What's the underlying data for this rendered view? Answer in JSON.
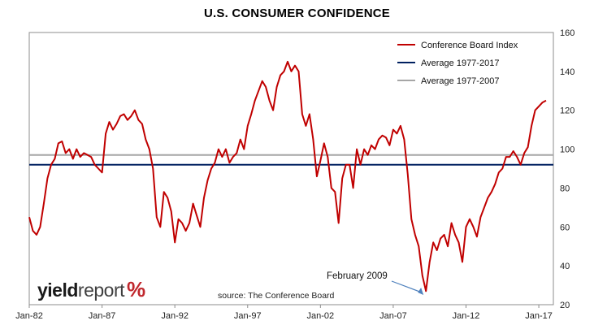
{
  "chart_data": {
    "type": "line",
    "title": "U.S. CONSUMER CONFIDENCE",
    "x_tick_labels": [
      "Jan-82",
      "Jan-87",
      "Jan-92",
      "Jan-97",
      "Jan-02",
      "Jan-07",
      "Jan-12",
      "Jan-17"
    ],
    "x_tick_years": [
      1982,
      1987,
      1992,
      1997,
      2002,
      2007,
      2012,
      2017
    ],
    "xlim": [
      1982.0,
      2018.0
    ],
    "ylim": [
      20,
      160
    ],
    "y_ticks": [
      20,
      40,
      60,
      80,
      100,
      120,
      140,
      160
    ],
    "y_axis_side": "right",
    "grid": false,
    "legend_position": "top-right",
    "series": [
      {
        "name": "Conference Board Index",
        "color": "#c00000",
        "x": [
          1982.0,
          1982.25,
          1982.5,
          1982.75,
          1983.0,
          1983.25,
          1983.5,
          1983.75,
          1984.0,
          1984.25,
          1984.5,
          1984.75,
          1985.0,
          1985.25,
          1985.5,
          1985.75,
          1986.0,
          1986.25,
          1986.5,
          1986.75,
          1987.0,
          1987.25,
          1987.5,
          1987.75,
          1988.0,
          1988.25,
          1988.5,
          1988.75,
          1989.0,
          1989.25,
          1989.5,
          1989.75,
          1990.0,
          1990.25,
          1990.5,
          1990.75,
          1991.0,
          1991.25,
          1991.5,
          1991.75,
          1992.0,
          1992.25,
          1992.5,
          1992.75,
          1993.0,
          1993.25,
          1993.5,
          1993.75,
          1994.0,
          1994.25,
          1994.5,
          1994.75,
          1995.0,
          1995.25,
          1995.5,
          1995.75,
          1996.0,
          1996.25,
          1996.5,
          1996.75,
          1997.0,
          1997.25,
          1997.5,
          1997.75,
          1998.0,
          1998.25,
          1998.5,
          1998.75,
          1999.0,
          1999.25,
          1999.5,
          1999.75,
          2000.0,
          2000.25,
          2000.5,
          2000.75,
          2001.0,
          2001.25,
          2001.5,
          2001.75,
          2002.0,
          2002.25,
          2002.5,
          2002.75,
          2003.0,
          2003.25,
          2003.5,
          2003.75,
          2004.0,
          2004.25,
          2004.5,
          2004.75,
          2005.0,
          2005.25,
          2005.5,
          2005.75,
          2006.0,
          2006.25,
          2006.5,
          2006.75,
          2007.0,
          2007.25,
          2007.5,
          2007.75,
          2008.0,
          2008.25,
          2008.5,
          2008.75,
          2009.0,
          2009.25,
          2009.5,
          2009.75,
          2010.0,
          2010.25,
          2010.5,
          2010.75,
          2011.0,
          2011.25,
          2011.5,
          2011.75,
          2012.0,
          2012.25,
          2012.5,
          2012.75,
          2013.0,
          2013.25,
          2013.5,
          2013.75,
          2014.0,
          2014.25,
          2014.5,
          2014.75,
          2015.0,
          2015.25,
          2015.5,
          2015.75,
          2016.0,
          2016.25,
          2016.5,
          2016.75,
          2017.0,
          2017.25,
          2017.5
        ],
        "values": [
          65,
          58,
          56,
          60,
          72,
          85,
          92,
          95,
          103,
          104,
          98,
          100,
          95,
          100,
          96,
          98,
          97,
          96,
          92,
          90,
          88,
          108,
          114,
          110,
          113,
          117,
          118,
          115,
          117,
          120,
          115,
          113,
          105,
          100,
          90,
          65,
          60,
          78,
          75,
          68,
          52,
          64,
          62,
          58,
          62,
          72,
          66,
          60,
          75,
          84,
          90,
          93,
          100,
          96,
          100,
          93,
          96,
          98,
          105,
          100,
          112,
          118,
          125,
          130,
          135,
          132,
          125,
          120,
          132,
          138,
          140,
          145,
          140,
          143,
          140,
          118,
          112,
          118,
          105,
          86,
          94,
          103,
          96,
          80,
          78,
          62,
          85,
          92,
          92,
          80,
          100,
          92,
          100,
          97,
          102,
          100,
          105,
          107,
          106,
          102,
          110,
          108,
          112,
          105,
          87,
          64,
          56,
          50,
          35,
          27,
          42,
          52,
          48,
          54,
          56,
          50,
          62,
          56,
          52,
          42,
          60,
          64,
          60,
          55,
          65,
          70,
          75,
          78,
          82,
          88,
          90,
          96,
          96,
          99,
          96,
          92,
          98,
          101,
          112,
          120,
          122,
          124,
          125
        ]
      }
    ],
    "reference_lines": [
      {
        "name": "Average 1977-2017",
        "value": 92,
        "color": "#002060"
      },
      {
        "name": "Average 1977-2007",
        "value": 97,
        "color": "#a6a6a6"
      }
    ],
    "annotations": [
      {
        "text": "February 2009",
        "x": 2009.08,
        "y": 25
      }
    ],
    "source": "source: The Conference Board",
    "logo": {
      "word1": "yield",
      "word2": "report",
      "symbol": "%"
    }
  }
}
